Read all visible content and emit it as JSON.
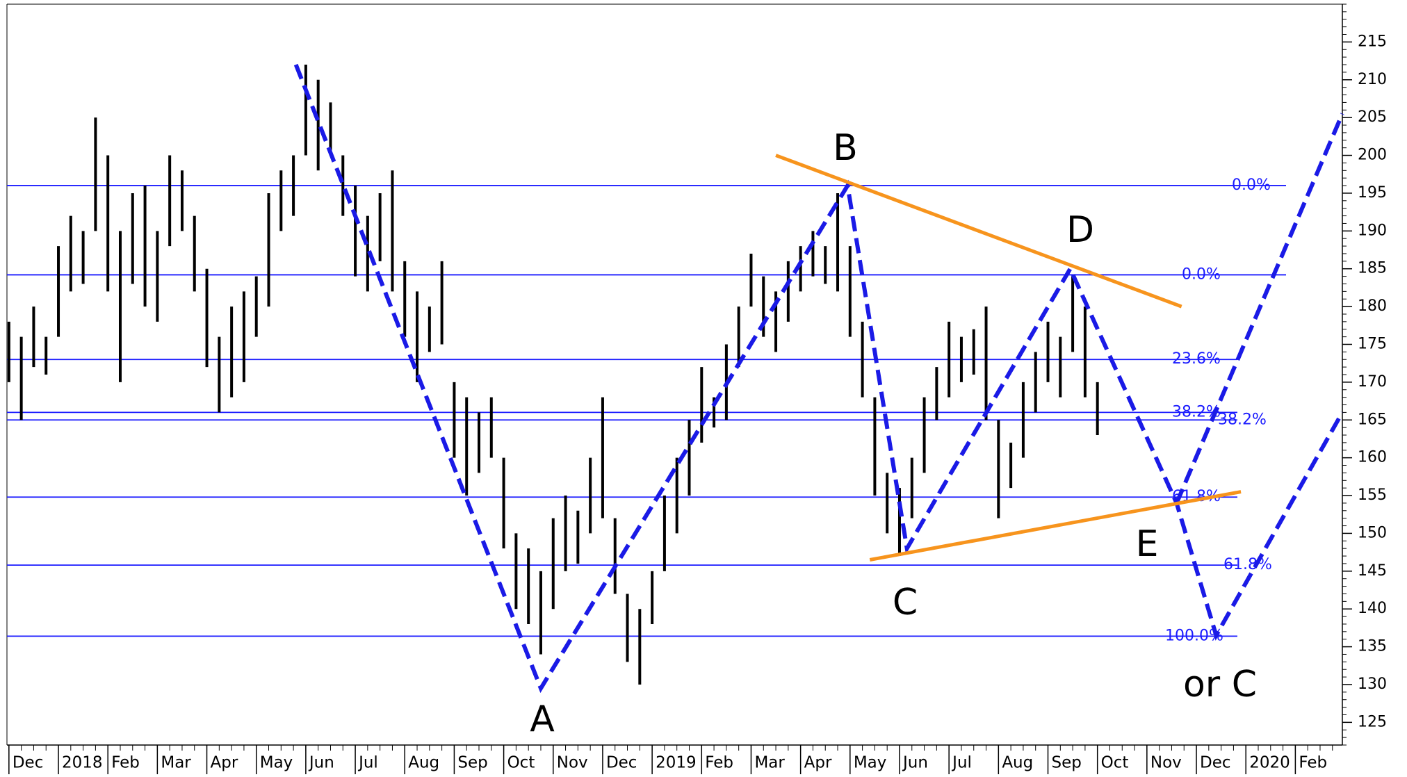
{
  "chart_data": {
    "type": "ohlc",
    "ylim": [
      122,
      220
    ],
    "yticks": [
      125,
      130,
      135,
      140,
      145,
      150,
      155,
      160,
      165,
      170,
      175,
      180,
      185,
      190,
      195,
      200,
      205,
      210,
      215
    ],
    "xlim": [
      -0.04,
      26.95
    ],
    "xticks": [
      {
        "value": 0,
        "label": "Dec"
      },
      {
        "value": 1,
        "label": "2018"
      },
      {
        "value": 2,
        "label": "Feb"
      },
      {
        "value": 3,
        "label": "Mar"
      },
      {
        "value": 4,
        "label": "Apr"
      },
      {
        "value": 5,
        "label": "May"
      },
      {
        "value": 6,
        "label": "Jun"
      },
      {
        "value": 7,
        "label": "Jul"
      },
      {
        "value": 8,
        "label": "Aug"
      },
      {
        "value": 9,
        "label": "Sep"
      },
      {
        "value": 10,
        "label": "Oct"
      },
      {
        "value": 11,
        "label": "Nov"
      },
      {
        "value": 12,
        "label": "Dec"
      },
      {
        "value": 13,
        "label": "2019"
      },
      {
        "value": 14,
        "label": "Feb"
      },
      {
        "value": 15,
        "label": "Mar"
      },
      {
        "value": 16,
        "label": "Apr"
      },
      {
        "value": 17,
        "label": "May"
      },
      {
        "value": 18,
        "label": "Jun"
      },
      {
        "value": 19,
        "label": "Jul"
      },
      {
        "value": 20,
        "label": "Aug"
      },
      {
        "value": 21,
        "label": "Sep"
      },
      {
        "value": 22,
        "label": "Oct"
      },
      {
        "value": 23,
        "label": "Nov"
      },
      {
        "value": 24,
        "label": "Dec"
      },
      {
        "value": 25,
        "label": "2020"
      },
      {
        "value": 26,
        "label": "Feb"
      }
    ],
    "bars": {
      "x": [
        0,
        0.25,
        0.5,
        0.75,
        1,
        1.25,
        1.5,
        1.75,
        2,
        2.25,
        2.5,
        2.75,
        3,
        3.25,
        3.5,
        3.75,
        4,
        4.25,
        4.5,
        4.75,
        5,
        5.25,
        5.5,
        5.75,
        6,
        6.25,
        6.5,
        6.75,
        7,
        7.25,
        7.5,
        7.75,
        8,
        8.25,
        8.5,
        8.75,
        9,
        9.25,
        9.5,
        9.75,
        10,
        10.25,
        10.5,
        10.75,
        11,
        11.25,
        11.5,
        11.75,
        12,
        12.25,
        12.5,
        12.75,
        13,
        13.25,
        13.5,
        13.75,
        14,
        14.25,
        14.5,
        14.75,
        15,
        15.25,
        15.5,
        15.75,
        16,
        16.25,
        16.5,
        16.75,
        17,
        17.25,
        17.5,
        17.75,
        18,
        18.25,
        18.5,
        18.75,
        19,
        19.25,
        19.5,
        19.75,
        20,
        20.25,
        20.5,
        20.75,
        21,
        21.25,
        21.5,
        21.75,
        22
      ],
      "high": [
        178,
        176,
        180,
        176,
        188,
        192,
        190,
        205,
        200,
        190,
        195,
        196,
        190,
        200,
        198,
        192,
        185,
        176,
        180,
        182,
        184,
        195,
        198,
        200,
        212,
        210,
        207,
        200,
        196,
        192,
        195,
        198,
        186,
        182,
        180,
        186,
        170,
        168,
        166,
        168,
        160,
        150,
        148,
        145,
        152,
        155,
        153,
        160,
        168,
        152,
        142,
        140,
        145,
        155,
        160,
        165,
        172,
        168,
        175,
        180,
        187,
        184,
        182,
        186,
        188,
        190,
        188,
        195,
        188,
        178,
        168,
        158,
        156,
        160,
        168,
        172,
        178,
        176,
        177,
        180,
        165,
        162,
        170,
        174,
        178,
        176,
        184,
        180,
        170
      ],
      "low": [
        170,
        165,
        172,
        171,
        176,
        182,
        183,
        190,
        182,
        170,
        183,
        180,
        178,
        188,
        190,
        182,
        172,
        166,
        168,
        170,
        176,
        180,
        190,
        192,
        200,
        198,
        200,
        192,
        184,
        182,
        186,
        182,
        176,
        170,
        174,
        175,
        160,
        155,
        158,
        160,
        148,
        140,
        138,
        134,
        140,
        145,
        146,
        150,
        152,
        142,
        133,
        130,
        138,
        145,
        150,
        155,
        162,
        164,
        165,
        172,
        180,
        176,
        174,
        178,
        182,
        184,
        183,
        182,
        176,
        168,
        155,
        150,
        147,
        152,
        158,
        165,
        168,
        170,
        171,
        165,
        152,
        156,
        160,
        166,
        170,
        168,
        174,
        168,
        163
      ],
      "color": "#000000"
    },
    "fib_levels": [
      {
        "value": 196,
        "label": "0.0%"
      },
      {
        "value": 184.2,
        "label": "0.0%"
      },
      {
        "value": 173,
        "label": "23.6%"
      },
      {
        "value": 166,
        "label": "38.2%"
      },
      {
        "value": 165,
        "label": "38.2%"
      },
      {
        "value": 154.8,
        "label": "61.8%"
      },
      {
        "value": 145.8,
        "label": "61.8%"
      },
      {
        "value": 136.4,
        "label": "100.0%"
      }
    ],
    "fib_color": "#1a1aff",
    "overlays": [
      {
        "color": "#1a1ae6",
        "style": "dashed",
        "points": [
          [
            5.8,
            212
          ],
          [
            10.75,
            129.5
          ],
          [
            16.95,
            196
          ],
          [
            18.15,
            148
          ],
          [
            21.45,
            185
          ],
          [
            23.6,
            154
          ],
          [
            24.4,
            136.5
          ],
          [
            26.95,
            166
          ]
        ]
      },
      {
        "color": "#1a1ae6",
        "style": "dashed",
        "points": [
          [
            23.6,
            154
          ],
          [
            26.95,
            205.5
          ]
        ]
      },
      {
        "color": "#f7941d",
        "style": "solid",
        "points": [
          [
            15.5,
            200
          ],
          [
            23.7,
            180
          ]
        ]
      },
      {
        "color": "#f7941d",
        "style": "solid",
        "points": [
          [
            17.4,
            146.5
          ],
          [
            24.9,
            155.5
          ]
        ]
      }
    ],
    "annotations": [
      "A",
      "B",
      "C",
      "D",
      "E",
      "or C"
    ]
  }
}
